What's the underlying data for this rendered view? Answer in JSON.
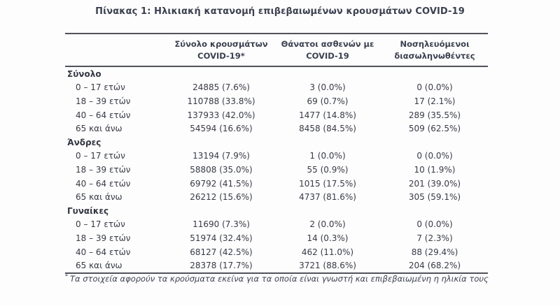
{
  "page": {
    "title": "Πίνακας 1: Ηλικιακή κατανομή επιβεβαιωμένων κρουσμάτων COVID-19",
    "footnote_marker": "*",
    "footnote": "Τα στοιχεία αφορούν τα κρούσματα εκείνα για τα οποία είναι γνωστή και επιβεβαιωμένη η ηλικία τους"
  },
  "colors": {
    "text": "#3c4150",
    "border": "#50525b",
    "background": "#fdfdfd"
  },
  "table": {
    "columns": [
      {
        "line1": "",
        "line2": ""
      },
      {
        "line1": "Σύνολο κρουσμάτων",
        "line2": "COVID-19*"
      },
      {
        "line1": "Θάνατοι ασθενών με",
        "line2": "COVID-19"
      },
      {
        "line1": "Νοσηλευόμενοι",
        "line2": "διασωληνωθέντες"
      }
    ],
    "sections": [
      {
        "label": "Σύνολο",
        "rows": [
          {
            "age": "0 – 17 ετών",
            "cases": "24885 (7.6%)",
            "deaths": "3 (0.0%)",
            "intubated": "0 (0.0%)"
          },
          {
            "age": "18 – 39 ετών",
            "cases": "110788 (33.8%)",
            "deaths": "69 (0.7%)",
            "intubated": "17 (2.1%)"
          },
          {
            "age": "40 – 64 ετών",
            "cases": "137933 (42.0%)",
            "deaths": "1477 (14.8%)",
            "intubated": "289 (35.5%)"
          },
          {
            "age": "65 και άνω",
            "cases": "54594 (16.6%)",
            "deaths": "8458 (84.5%)",
            "intubated": "509 (62.5%)"
          }
        ]
      },
      {
        "label": "Άνδρες",
        "rows": [
          {
            "age": "0 – 17 ετών",
            "cases": "13194 (7.9%)",
            "deaths": "1 (0.0%)",
            "intubated": "0 (0.0%)"
          },
          {
            "age": "18 – 39 ετών",
            "cases": "58808 (35.0%)",
            "deaths": "55 (0.9%)",
            "intubated": "10 (1.9%)"
          },
          {
            "age": "40 – 64 ετών",
            "cases": "69792 (41.5%)",
            "deaths": "1015 (17.5%)",
            "intubated": "201 (39.0%)"
          },
          {
            "age": "65 και άνω",
            "cases": "26212 (15.6%)",
            "deaths": "4737 (81.6%)",
            "intubated": "305 (59.1%)"
          }
        ]
      },
      {
        "label": "Γυναίκες",
        "rows": [
          {
            "age": "0 – 17 ετών",
            "cases": "11690 (7.3%)",
            "deaths": "2 (0.0%)",
            "intubated": "0 (0.0%)"
          },
          {
            "age": "18 – 39 ετών",
            "cases": "51974 (32.4%)",
            "deaths": "14 (0.3%)",
            "intubated": "7 (2.3%)"
          },
          {
            "age": "40 – 64 ετών",
            "cases": "68127 (42.5%)",
            "deaths": "462 (11.0%)",
            "intubated": "88 (29.4%)"
          },
          {
            "age": "65 και άνω",
            "cases": "28378 (17.7%)",
            "deaths": "3721 (88.6%)",
            "intubated": "204 (68.2%)"
          }
        ]
      }
    ]
  }
}
